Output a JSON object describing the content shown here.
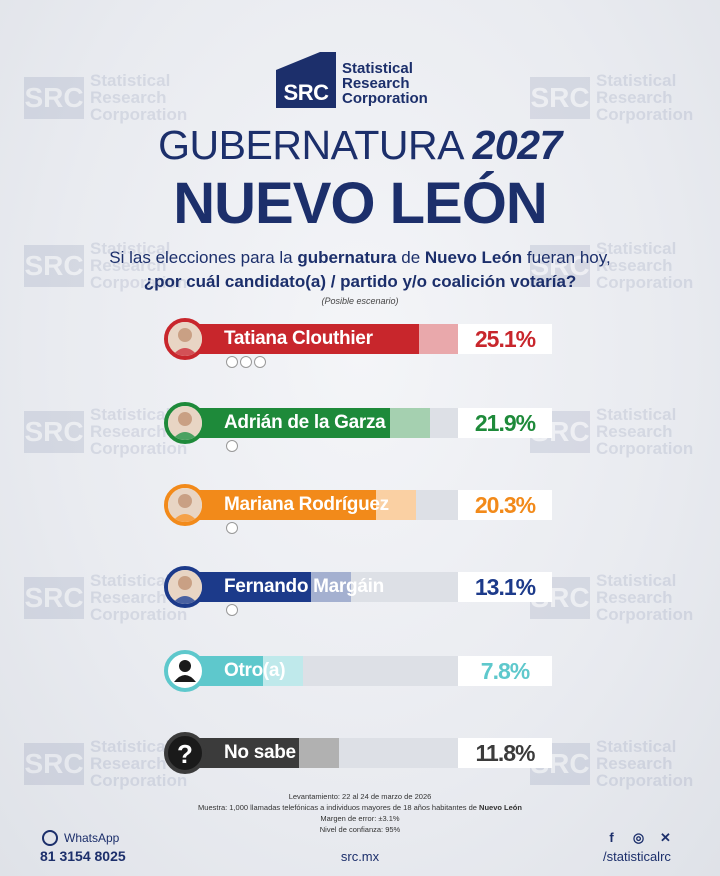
{
  "brand": {
    "abbr": "SRC",
    "name_line1": "Statistical",
    "name_line2": "Research",
    "name_line3": "Corporation",
    "color": "#1c2f6b"
  },
  "header": {
    "title_word": "GUBERNATURA",
    "title_year": "2027",
    "subtitle": "NUEVO LEÓN"
  },
  "question": {
    "part1": "Si las elecciones para la ",
    "bold1": "gubernatura",
    "part2": " de ",
    "bold2": "Nuevo León",
    "part3": " fueran hoy,",
    "line2": "¿por cuál candidato(a) / partido y/o coalición votaría?"
  },
  "scenario_note": "(Posible escenario)",
  "chart_data": {
    "type": "bar",
    "categories": [
      "Tatiana Clouthier",
      "Adrián de la Garza",
      "Mariana Rodríguez",
      "Fernando Margáin",
      "Otro(a)",
      "No sabe"
    ],
    "values": [
      25.1,
      21.9,
      20.3,
      13.1,
      7.8,
      11.8
    ],
    "value_labels": [
      "25.1%",
      "21.9%",
      "20.3%",
      "13.1%",
      "7.8%",
      "11.8%"
    ],
    "colors": [
      "#c8262c",
      "#1e8a3a",
      "#f28a1a",
      "#1c3a8a",
      "#5ec8cc",
      "#3b3b3b"
    ],
    "parties": [
      [
        "MORENA",
        "PT",
        "PVEM"
      ],
      [
        "PRI"
      ],
      [
        "MC"
      ],
      [
        "PAN"
      ],
      [],
      []
    ],
    "ylim": [
      0,
      30
    ]
  },
  "footnotes": {
    "line1": "Levantamiento: 22 al 24 de marzo de 2026",
    "line2a": "Muestra: 1,000 llamadas telefónicas a individuos mayores de 18 años habitantes de ",
    "line2b": "Nuevo León",
    "line3": "Margen de error: ±3.1%",
    "line4": "Nivel de confianza: 95%"
  },
  "footer": {
    "whatsapp_label": "WhatsApp",
    "phone": "81 3154 8025",
    "site": "src.mx",
    "handle": "/statisticalrc",
    "icons": [
      "facebook-icon",
      "instagram-icon",
      "x-icon"
    ]
  }
}
